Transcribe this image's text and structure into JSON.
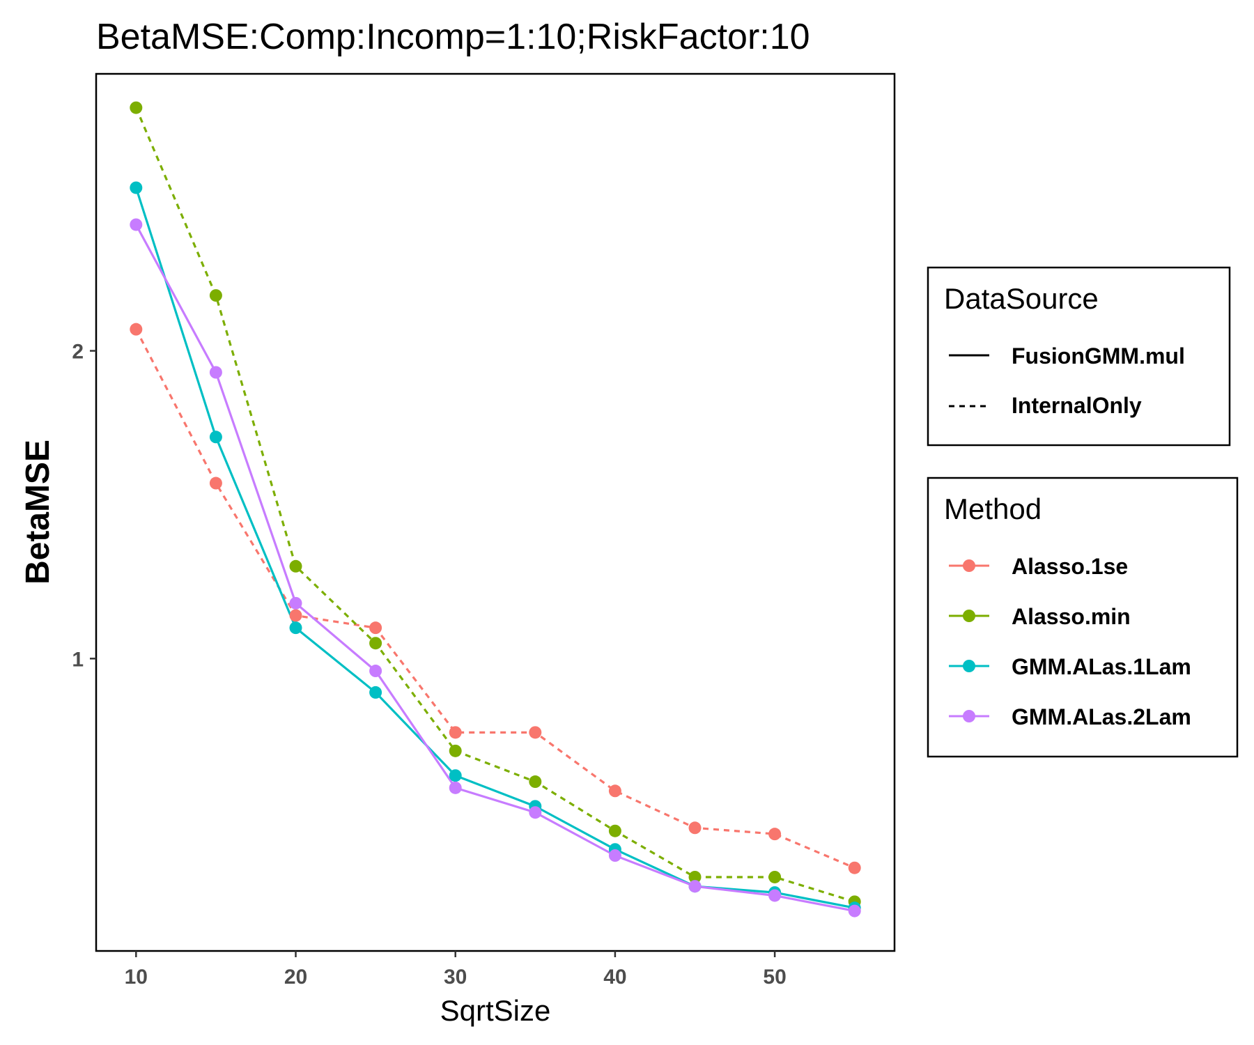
{
  "chart_data": {
    "type": "line",
    "title": "BetaMSE:Comp:Incomp=1:10;RiskFactor:10",
    "xlabel": "SqrtSize",
    "ylabel": "BetaMSE",
    "x": [
      10,
      15,
      20,
      25,
      30,
      35,
      40,
      45,
      50,
      55
    ],
    "xlim": [
      7.5,
      57.5
    ],
    "ylim": [
      0.05,
      2.9
    ],
    "x_ticks": [
      "10",
      "20",
      "30",
      "40",
      "50"
    ],
    "y_ticks": [
      "1",
      "2"
    ],
    "grid": false,
    "legend_position": "right",
    "series": [
      {
        "name": "Alasso.1se",
        "datasource": "InternalOnly",
        "color": "#F8766D",
        "dashed": true,
        "values": [
          2.07,
          1.57,
          1.14,
          1.1,
          0.76,
          0.76,
          0.57,
          0.45,
          0.43,
          0.32
        ]
      },
      {
        "name": "Alasso.min",
        "datasource": "InternalOnly",
        "color": "#7CAE00",
        "dashed": true,
        "values": [
          2.79,
          2.18,
          1.3,
          1.05,
          0.7,
          0.6,
          0.44,
          0.29,
          0.29,
          0.21
        ]
      },
      {
        "name": "GMM.ALas.1Lam",
        "datasource": "FusionGMM.mul",
        "color": "#00BFC4",
        "dashed": false,
        "values": [
          2.53,
          1.72,
          1.1,
          0.89,
          0.62,
          0.52,
          0.38,
          0.26,
          0.24,
          0.19
        ]
      },
      {
        "name": "GMM.ALas.2Lam",
        "datasource": "FusionGMM.mul",
        "color": "#C77CFF",
        "dashed": false,
        "values": [
          2.41,
          1.93,
          1.18,
          0.96,
          0.58,
          0.5,
          0.36,
          0.26,
          0.23,
          0.18
        ]
      }
    ],
    "legends": {
      "datasource": {
        "title": "DataSource",
        "items": [
          {
            "label": "FusionGMM.mul",
            "dashed": false
          },
          {
            "label": "InternalOnly",
            "dashed": true
          }
        ]
      },
      "method": {
        "title": "Method",
        "items": [
          {
            "label": "Alasso.1se",
            "color": "#F8766D"
          },
          {
            "label": "Alasso.min",
            "color": "#7CAE00"
          },
          {
            "label": "GMM.ALas.1Lam",
            "color": "#00BFC4"
          },
          {
            "label": "GMM.ALas.2Lam",
            "color": "#C77CFF"
          }
        ]
      }
    }
  }
}
